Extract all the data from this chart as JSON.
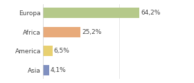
{
  "categories": [
    "Europa",
    "Africa",
    "America",
    "Asia"
  ],
  "values": [
    64.2,
    25.2,
    6.5,
    4.1
  ],
  "labels": [
    "64,2%",
    "25,2%",
    "6,5%",
    "4,1%"
  ],
  "bar_colors": [
    "#b5c98a",
    "#e8aa7a",
    "#e8d070",
    "#8090c0"
  ],
  "background_color": "#ffffff",
  "xlim": [
    0,
    85
  ],
  "label_fontsize": 6.5,
  "tick_fontsize": 6.5,
  "bar_height": 0.55
}
